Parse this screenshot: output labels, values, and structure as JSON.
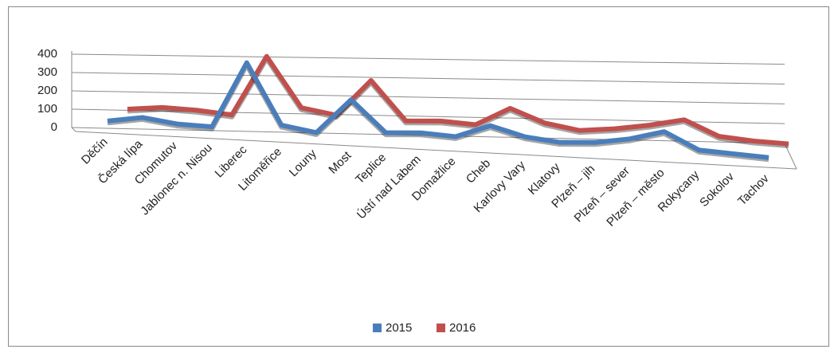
{
  "chart_data": {
    "type": "line",
    "categories": [
      "Děčín",
      "Česká lípa",
      "Chomutov",
      "Jablonec n. Nisou",
      "Liberec",
      "Litoměřice",
      "Louny",
      "Most",
      "Teplice",
      "Ústí nad Labem",
      "Domažlice",
      "Cheb",
      "Karlovy Vary",
      "Klatovy",
      "Plzeň – jih",
      "Plzeň – sever",
      "Plzeň – město",
      "Rokycany",
      "Sokolov",
      "Tachov"
    ],
    "series": [
      {
        "name": "2015",
        "color": "#4a7ebb",
        "values": [
          10,
          40,
          15,
          10,
          370,
          40,
          10,
          200,
          30,
          40,
          30,
          100,
          50,
          30,
          40,
          70,
          120,
          30,
          20,
          10
        ]
      },
      {
        "name": "2016",
        "color": "#c0504d",
        "values": [
          40,
          60,
          55,
          40,
          370,
          100,
          70,
          270,
          60,
          70,
          60,
          160,
          90,
          60,
          80,
          110,
          150,
          70,
          55,
          50
        ]
      }
    ],
    "ylim": [
      0,
      400
    ],
    "yticks": [
      0,
      100,
      200,
      300,
      400
    ],
    "grid": true,
    "legend": "bottom"
  }
}
